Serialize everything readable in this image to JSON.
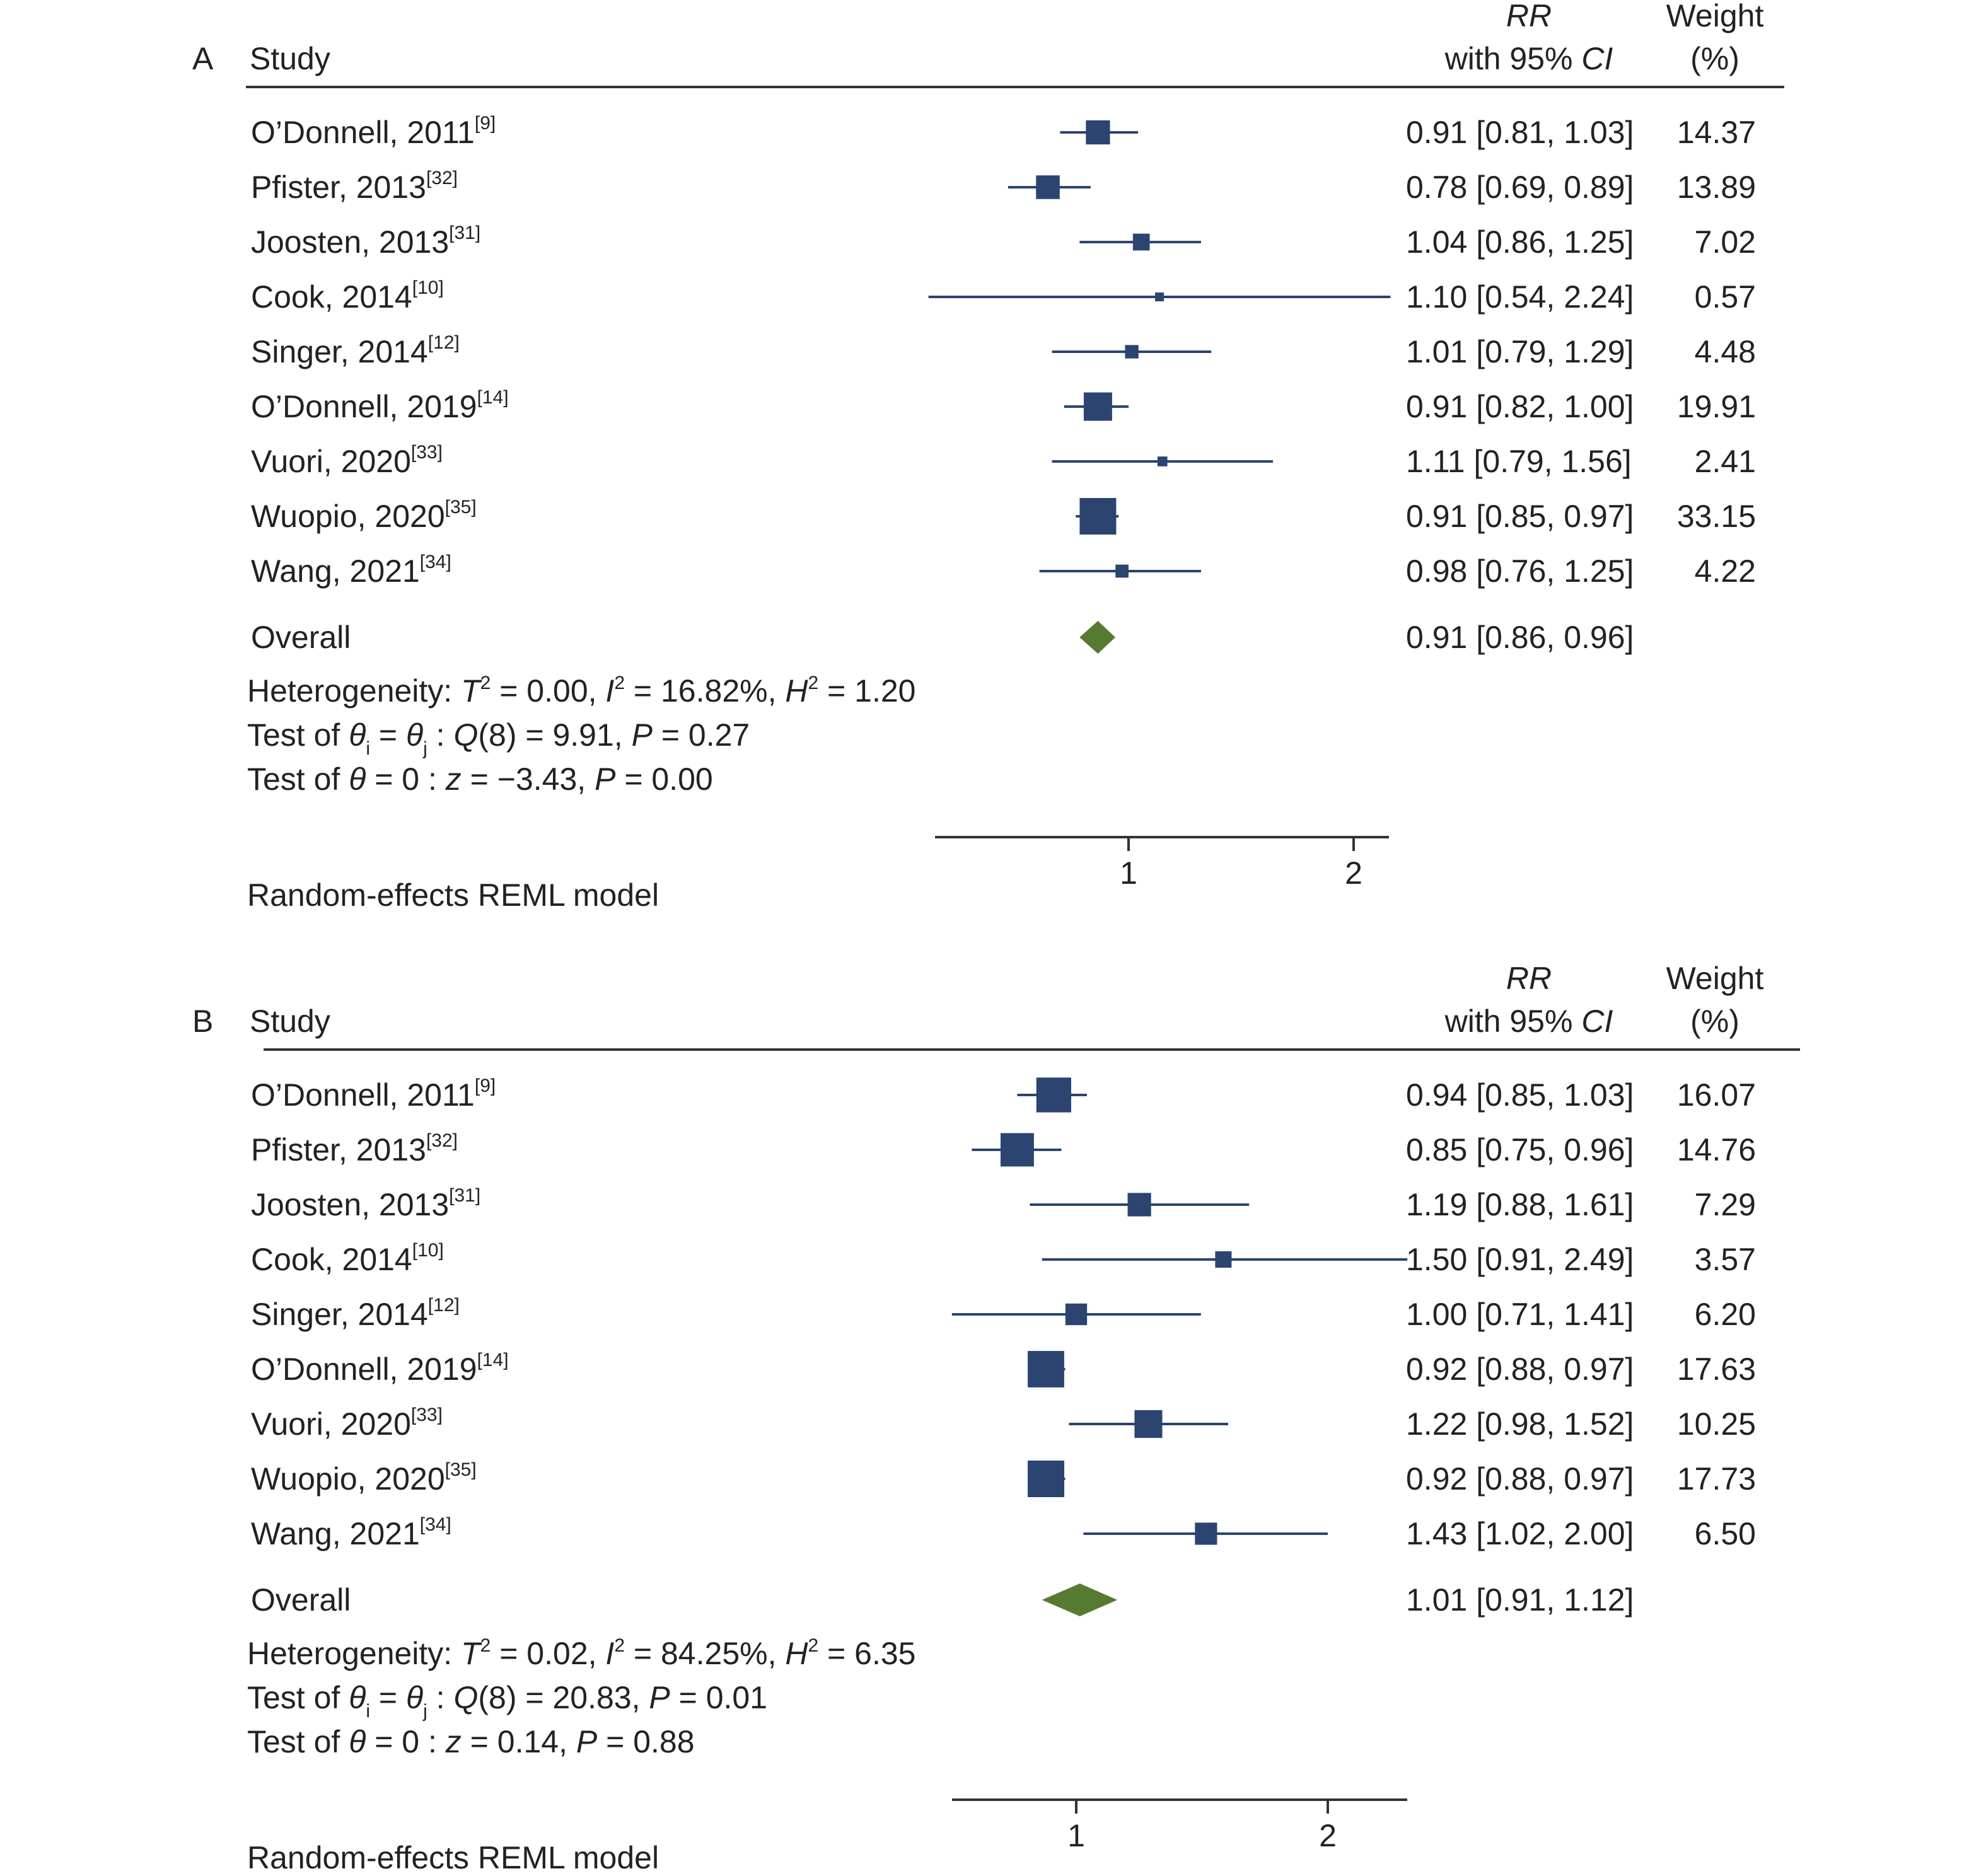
{
  "colors": {
    "marker": "#2b4470",
    "ci_line": "#2b4470",
    "diamond": "#557a30",
    "rule": "#333333",
    "text": "#222222"
  },
  "chart_data": [
    {
      "type": "forest",
      "panel": "A",
      "header": {
        "study": "Study",
        "rr": "RR",
        "ci": "with 95% CI",
        "weight": "Weight",
        "weight_unit": "(%)"
      },
      "x_scale": "log",
      "xticks": [
        1,
        2
      ],
      "xlim": [
        0.54,
        2.24
      ],
      "studies": [
        {
          "name": "O’Donnell, 2011",
          "ref": "[9]",
          "rr": 0.91,
          "lo": 0.81,
          "hi": 1.03,
          "weight": 14.37,
          "label": "0.91 [0.81, 1.03]",
          "weight_label": "14.37"
        },
        {
          "name": "Pfister, 2013",
          "ref": "[32]",
          "rr": 0.78,
          "lo": 0.69,
          "hi": 0.89,
          "weight": 13.89,
          "label": "0.78 [0.69, 0.89]",
          "weight_label": "13.89"
        },
        {
          "name": "Joosten, 2013",
          "ref": "[31]",
          "rr": 1.04,
          "lo": 0.86,
          "hi": 1.25,
          "weight": 7.02,
          "label": "1.04 [0.86, 1.25]",
          "weight_label": "7.02"
        },
        {
          "name": "Cook, 2014",
          "ref": "[10]",
          "rr": 1.1,
          "lo": 0.54,
          "hi": 2.24,
          "weight": 0.57,
          "label": "1.10 [0.54, 2.24]",
          "weight_label": "0.57"
        },
        {
          "name": "Singer, 2014",
          "ref": "[12]",
          "rr": 1.01,
          "lo": 0.79,
          "hi": 1.29,
          "weight": 4.48,
          "label": "1.01 [0.79, 1.29]",
          "weight_label": "4.48"
        },
        {
          "name": "O’Donnell, 2019",
          "ref": "[14]",
          "rr": 0.91,
          "lo": 0.82,
          "hi": 1.0,
          "weight": 19.91,
          "label": "0.91 [0.82, 1.00]",
          "weight_label": "19.91"
        },
        {
          "name": "Vuori, 2020",
          "ref": "[33]",
          "rr": 1.11,
          "lo": 0.79,
          "hi": 1.56,
          "weight": 2.41,
          "label": "1.11 [0.79, 1.56]",
          "weight_label": "2.41"
        },
        {
          "name": "Wuopio, 2020",
          "ref": "[35]",
          "rr": 0.91,
          "lo": 0.85,
          "hi": 0.97,
          "weight": 33.15,
          "label": "0.91 [0.85, 0.97]",
          "weight_label": "33.15"
        },
        {
          "name": "Wang, 2021",
          "ref": "[34]",
          "rr": 0.98,
          "lo": 0.76,
          "hi": 1.25,
          "weight": 4.22,
          "label": "0.98 [0.76, 1.25]",
          "weight_label": "4.22"
        }
      ],
      "overall": {
        "name": "Overall",
        "rr": 0.91,
        "lo": 0.86,
        "hi": 0.96,
        "label": "0.91 [0.86, 0.96]"
      },
      "heterogeneity": {
        "prefix": "Heterogeneity: ",
        "t2": "0.00",
        "i2": "16.82%",
        "h2": "1.20"
      },
      "test_q": {
        "prefix": "Test of ",
        "df": "8",
        "q": "9.91",
        "p": "0.27"
      },
      "test_z": {
        "prefix": "Test of ",
        "z": "−3.43",
        "p": "0.00"
      },
      "model": "Random-effects REML model"
    },
    {
      "type": "forest",
      "panel": "B",
      "header": {
        "study": "Study",
        "rr": "RR",
        "ci": "with 95% CI",
        "weight": "Weight",
        "weight_unit": "(%)"
      },
      "x_scale": "log",
      "xticks": [
        1,
        2
      ],
      "xlim": [
        0.71,
        2.49
      ],
      "studies": [
        {
          "name": "O’Donnell, 2011",
          "ref": "[9]",
          "rr": 0.94,
          "lo": 0.85,
          "hi": 1.03,
          "weight": 16.07,
          "label": "0.94 [0.85, 1.03]",
          "weight_label": "16.07"
        },
        {
          "name": "Pfister, 2013",
          "ref": "[32]",
          "rr": 0.85,
          "lo": 0.75,
          "hi": 0.96,
          "weight": 14.76,
          "label": "0.85 [0.75, 0.96]",
          "weight_label": "14.76"
        },
        {
          "name": "Joosten, 2013",
          "ref": "[31]",
          "rr": 1.19,
          "lo": 0.88,
          "hi": 1.61,
          "weight": 7.29,
          "label": "1.19 [0.88, 1.61]",
          "weight_label": "7.29"
        },
        {
          "name": "Cook, 2014",
          "ref": "[10]",
          "rr": 1.5,
          "lo": 0.91,
          "hi": 2.49,
          "weight": 3.57,
          "label": "1.50 [0.91, 2.49]",
          "weight_label": "3.57"
        },
        {
          "name": "Singer, 2014",
          "ref": "[12]",
          "rr": 1.0,
          "lo": 0.71,
          "hi": 1.41,
          "weight": 6.2,
          "label": "1.00 [0.71, 1.41]",
          "weight_label": "6.20"
        },
        {
          "name": "O’Donnell, 2019",
          "ref": "[14]",
          "rr": 0.92,
          "lo": 0.88,
          "hi": 0.97,
          "weight": 17.63,
          "label": "0.92 [0.88, 0.97]",
          "weight_label": "17.63"
        },
        {
          "name": "Vuori, 2020",
          "ref": "[33]",
          "rr": 1.22,
          "lo": 0.98,
          "hi": 1.52,
          "weight": 10.25,
          "label": "1.22 [0.98, 1.52]",
          "weight_label": "10.25"
        },
        {
          "name": "Wuopio, 2020",
          "ref": "[35]",
          "rr": 0.92,
          "lo": 0.88,
          "hi": 0.97,
          "weight": 17.73,
          "label": "0.92 [0.88, 0.97]",
          "weight_label": "17.73"
        },
        {
          "name": "Wang, 2021",
          "ref": "[34]",
          "rr": 1.43,
          "lo": 1.02,
          "hi": 2.0,
          "weight": 6.5,
          "label": "1.43 [1.02, 2.00]",
          "weight_label": "6.50"
        }
      ],
      "overall": {
        "name": "Overall",
        "rr": 1.01,
        "lo": 0.91,
        "hi": 1.12,
        "label": "1.01 [0.91, 1.12]"
      },
      "heterogeneity": {
        "prefix": "Heterogeneity: ",
        "t2": "0.02",
        "i2": "84.25%",
        "h2": "6.35"
      },
      "test_q": {
        "prefix": "Test of ",
        "df": "8",
        "q": "20.83",
        "p": "0.01"
      },
      "test_z": {
        "prefix": "Test of ",
        "z": "0.14",
        "p": "0.88"
      },
      "model": "Random-effects REML model"
    }
  ]
}
